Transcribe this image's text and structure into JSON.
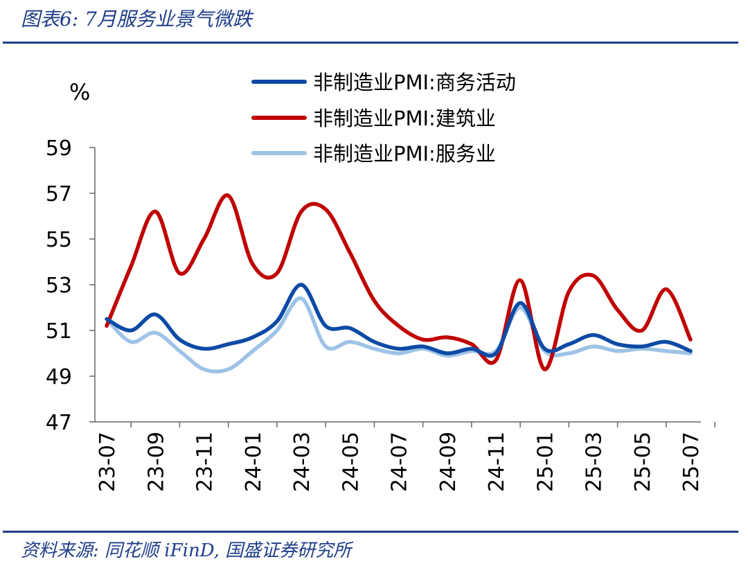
{
  "header": {
    "title": "图表6:  7月服务业景气微跌"
  },
  "footer": {
    "source": "资料来源:  同花顺 iFinD,  国盛证券研究所"
  },
  "chart_data": {
    "type": "line",
    "ylabel": "%",
    "ylim": [
      47,
      59
    ],
    "yticks": [
      47,
      49,
      51,
      53,
      55,
      57,
      59
    ],
    "grid": false,
    "legend_position": "top",
    "x": [
      "23-07",
      "23-08",
      "23-09",
      "23-10",
      "23-11",
      "23-12",
      "24-01",
      "24-02",
      "24-03",
      "24-04",
      "24-05",
      "24-06",
      "24-07",
      "24-08",
      "24-09",
      "24-10",
      "24-11",
      "24-12",
      "25-01",
      "25-02",
      "25-03",
      "25-04",
      "25-05",
      "25-06",
      "25-07"
    ],
    "xtick_labels": [
      "23-07",
      "23-09",
      "23-11",
      "24-01",
      "24-03",
      "24-05",
      "24-07",
      "24-09",
      "24-11",
      "25-01",
      "25-03",
      "25-05",
      "25-07"
    ],
    "series": [
      {
        "name": "非制造业PMI:商务活动",
        "color": "#0c4aa6",
        "values": [
          51.5,
          51.0,
          51.7,
          50.6,
          50.2,
          50.4,
          50.7,
          51.4,
          53.0,
          51.2,
          51.1,
          50.5,
          50.2,
          50.3,
          50.0,
          50.2,
          50.0,
          52.2,
          50.2,
          50.4,
          50.8,
          50.4,
          50.3,
          50.5,
          50.1
        ]
      },
      {
        "name": "非制造业PMI:建筑业",
        "color": "#c00000",
        "values": [
          51.2,
          53.8,
          56.2,
          53.5,
          55.0,
          56.9,
          53.9,
          53.5,
          56.2,
          56.3,
          54.4,
          52.3,
          51.2,
          50.6,
          50.7,
          50.4,
          49.7,
          53.2,
          49.3,
          52.7,
          53.4,
          51.9,
          51.0,
          52.8,
          50.6
        ]
      },
      {
        "name": "非制造业PMI:服务业",
        "color": "#9dc3e6",
        "values": [
          51.5,
          50.5,
          50.9,
          50.1,
          49.3,
          49.3,
          50.1,
          51.0,
          52.4,
          50.3,
          50.5,
          50.2,
          50.0,
          50.2,
          49.9,
          50.1,
          50.1,
          52.0,
          50.1,
          50.0,
          50.3,
          50.1,
          50.2,
          50.1,
          50.0
        ]
      }
    ]
  }
}
